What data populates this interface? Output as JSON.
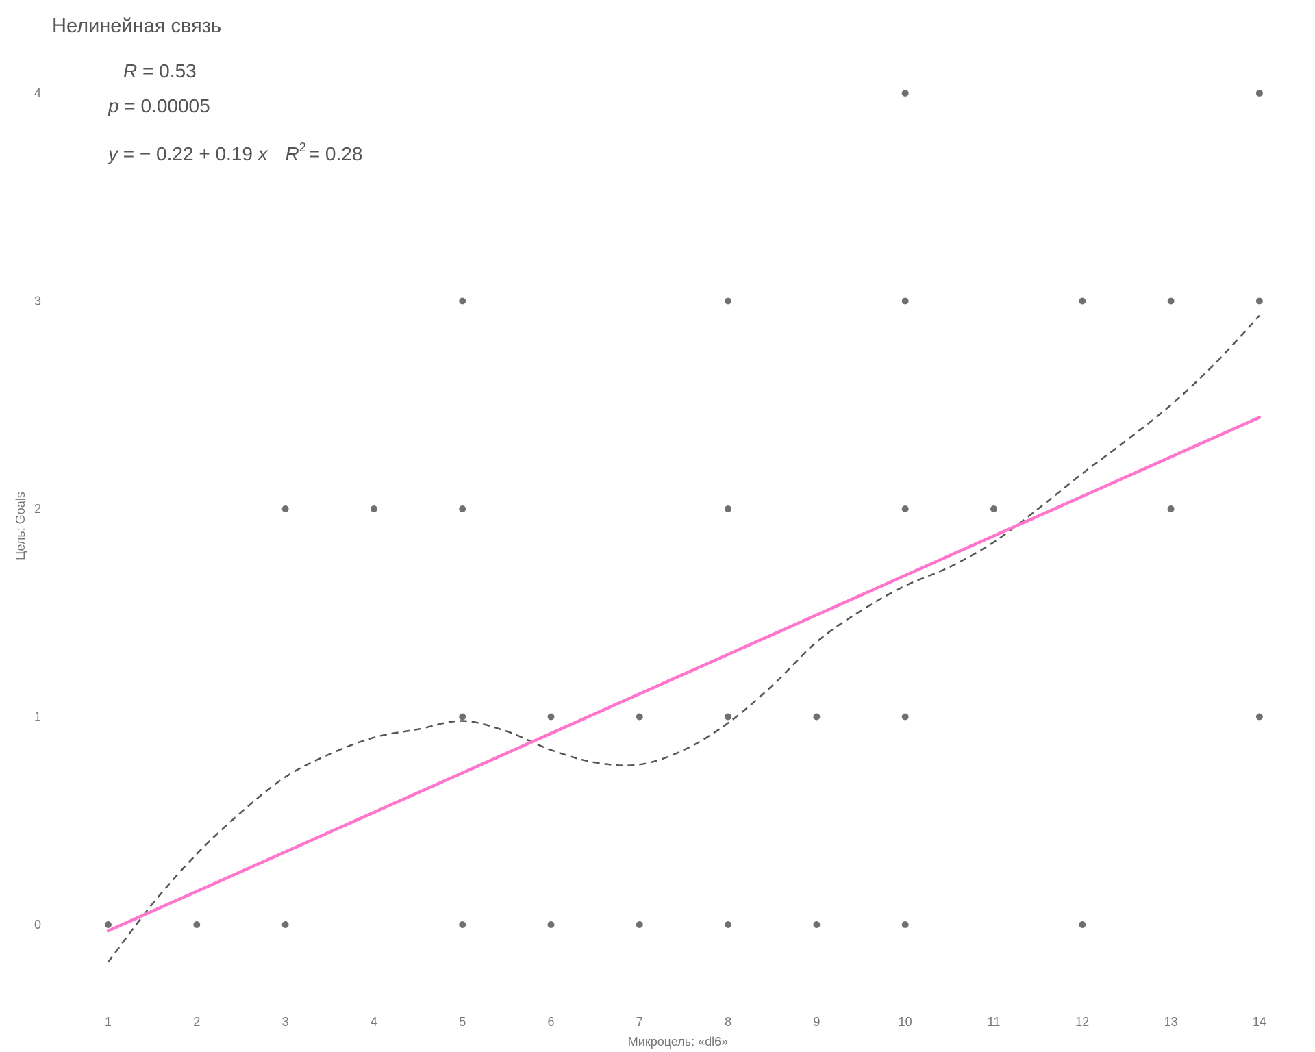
{
  "chart_data": {
    "type": "scatter",
    "title": "Нелинейная связь",
    "xlabel": "Микроцель: «dl6»",
    "ylabel": "Цель: Goals",
    "xlim": [
      0.5,
      14.5
    ],
    "ylim": [
      -0.35,
      4.1
    ],
    "x_ticks": [
      1,
      2,
      3,
      4,
      5,
      6,
      7,
      8,
      9,
      10,
      11,
      12,
      13,
      14
    ],
    "y_ticks": [
      0,
      1,
      2,
      3,
      4
    ],
    "grid": false,
    "stats": {
      "r_label": "R",
      "r_value": "= 0.53",
      "p_label": "p",
      "p_value": "= 0.00005",
      "eq_y": "y",
      "eq_body": "= − 0.22 + 0.19",
      "eq_x": "x",
      "r2_label": "R",
      "r2_sup": "2",
      "r2_value": "= 0.28"
    },
    "points": [
      {
        "x": 1,
        "y": 0
      },
      {
        "x": 2,
        "y": 0
      },
      {
        "x": 3,
        "y": 0
      },
      {
        "x": 3,
        "y": 2
      },
      {
        "x": 4,
        "y": 2
      },
      {
        "x": 5,
        "y": 0
      },
      {
        "x": 5,
        "y": 1
      },
      {
        "x": 5,
        "y": 2
      },
      {
        "x": 5,
        "y": 3
      },
      {
        "x": 6,
        "y": 0
      },
      {
        "x": 6,
        "y": 1
      },
      {
        "x": 7,
        "y": 0
      },
      {
        "x": 7,
        "y": 1
      },
      {
        "x": 8,
        "y": 0
      },
      {
        "x": 8,
        "y": 1
      },
      {
        "x": 8,
        "y": 2
      },
      {
        "x": 8,
        "y": 3
      },
      {
        "x": 9,
        "y": 0
      },
      {
        "x": 9,
        "y": 1
      },
      {
        "x": 10,
        "y": 0
      },
      {
        "x": 10,
        "y": 1
      },
      {
        "x": 10,
        "y": 2
      },
      {
        "x": 10,
        "y": 3
      },
      {
        "x": 10,
        "y": 4
      },
      {
        "x": 11,
        "y": 2
      },
      {
        "x": 12,
        "y": 0
      },
      {
        "x": 12,
        "y": 3
      },
      {
        "x": 13,
        "y": 2
      },
      {
        "x": 13,
        "y": 3
      },
      {
        "x": 14,
        "y": 1
      },
      {
        "x": 14,
        "y": 3
      },
      {
        "x": 14,
        "y": 4
      }
    ],
    "linear_fit": {
      "intercept": -0.22,
      "slope": 0.19,
      "x_range": [
        1,
        14
      ],
      "color": "#ff77cc"
    },
    "smooth_fit": {
      "style": "dashed",
      "color": "#555555",
      "points": [
        {
          "x": 1,
          "y": -0.18
        },
        {
          "x": 1.5,
          "y": 0.1
        },
        {
          "x": 2,
          "y": 0.34
        },
        {
          "x": 2.5,
          "y": 0.54
        },
        {
          "x": 3,
          "y": 0.71
        },
        {
          "x": 3.5,
          "y": 0.82
        },
        {
          "x": 4,
          "y": 0.9
        },
        {
          "x": 4.5,
          "y": 0.94
        },
        {
          "x": 5,
          "y": 0.98
        },
        {
          "x": 5.5,
          "y": 0.93
        },
        {
          "x": 6,
          "y": 0.84
        },
        {
          "x": 6.5,
          "y": 0.78
        },
        {
          "x": 7,
          "y": 0.77
        },
        {
          "x": 7.5,
          "y": 0.84
        },
        {
          "x": 8,
          "y": 0.97
        },
        {
          "x": 8.5,
          "y": 1.15
        },
        {
          "x": 9,
          "y": 1.36
        },
        {
          "x": 9.5,
          "y": 1.51
        },
        {
          "x": 10,
          "y": 1.63
        },
        {
          "x": 10.5,
          "y": 1.72
        },
        {
          "x": 11,
          "y": 1.84
        },
        {
          "x": 11.5,
          "y": 2.0
        },
        {
          "x": 12,
          "y": 2.17
        },
        {
          "x": 12.5,
          "y": 2.33
        },
        {
          "x": 13,
          "y": 2.5
        },
        {
          "x": 13.5,
          "y": 2.7
        },
        {
          "x": 14,
          "y": 2.93
        }
      ]
    },
    "point_color": "#707070"
  }
}
